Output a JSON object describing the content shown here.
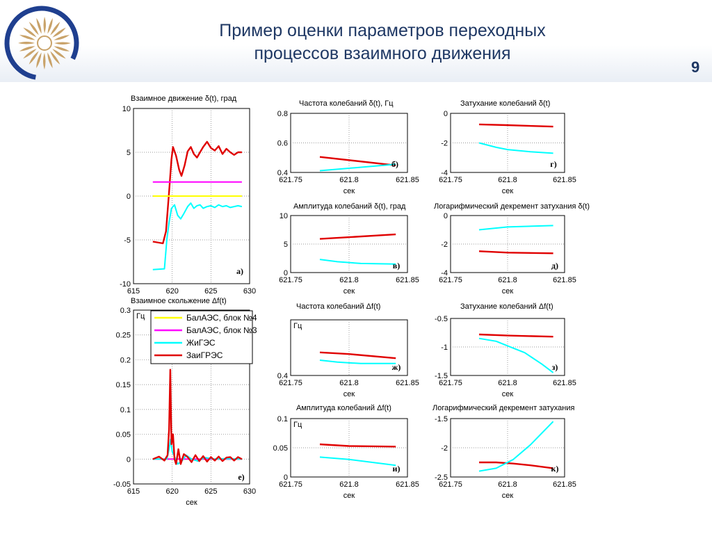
{
  "slide": {
    "title_line1": "Пример оценки параметров переходных",
    "title_line2": "процессов взаимного движения",
    "page_number": "9"
  },
  "colors": {
    "title": "#1f3864",
    "bal4": "#ffff00",
    "bal3": "#ff00ff",
    "zhig": "#00ffff",
    "zai": "#e00000"
  },
  "legend": [
    {
      "label": "БалАЭС, блок №4",
      "color": "#ffff00"
    },
    {
      "label": "БалАЭС, блок №3",
      "color": "#ff00ff"
    },
    {
      "label": "ЖиГЭС",
      "color": "#00ffff"
    },
    {
      "label": "ЗаиГРЭС",
      "color": "#e00000"
    }
  ],
  "chart_data": [
    {
      "id": "a",
      "type": "line",
      "title": "Взаимное движение δ(t), град",
      "panel_label": "а)",
      "xlabel": "",
      "ylabel": "",
      "xlim": [
        615,
        630
      ],
      "ylim": [
        -10,
        10
      ],
      "xticks": [
        "615",
        "620",
        "625",
        "630"
      ],
      "yticks": [
        "-10",
        "-5",
        "0",
        "5",
        "10"
      ],
      "grid": true,
      "series": [
        {
          "color": "#e00000",
          "x": [
            617.5,
            618.8,
            619.2,
            619.6,
            619.9,
            620.1,
            620.5,
            620.9,
            621.2,
            621.6,
            622.0,
            622.4,
            622.8,
            623.2,
            623.6,
            624.0,
            624.5,
            625.0,
            625.5,
            626.0,
            626.5,
            627.0,
            627.5,
            628.0,
            628.5,
            629.0
          ],
          "y": [
            -5.2,
            -5.4,
            -4.0,
            0.5,
            4.2,
            5.6,
            4.6,
            3.0,
            2.3,
            3.5,
            5.1,
            5.6,
            4.8,
            4.4,
            5.0,
            5.6,
            6.2,
            5.5,
            5.2,
            5.7,
            4.8,
            5.4,
            5.0,
            4.7,
            5.0,
            5.0
          ]
        },
        {
          "color": "#ffff00",
          "x": [
            617.5,
            629.0
          ],
          "y": [
            0.0,
            0.0
          ]
        },
        {
          "color": "#ff00ff",
          "x": [
            617.5,
            629.0
          ],
          "y": [
            1.6,
            1.6
          ]
        },
        {
          "color": "#00ffff",
          "x": [
            617.5,
            619.0,
            619.3,
            619.6,
            619.9,
            620.3,
            620.7,
            621.1,
            621.5,
            622.0,
            622.4,
            622.8,
            623.2,
            623.6,
            624.0,
            624.5,
            625.0,
            625.5,
            626.0,
            626.5,
            627.0,
            627.5,
            628.0,
            628.5,
            629.0
          ],
          "y": [
            -8.4,
            -8.3,
            -5.0,
            -3.0,
            -1.4,
            -1.0,
            -2.2,
            -2.6,
            -2.0,
            -1.2,
            -0.8,
            -1.4,
            -1.1,
            -1.0,
            -1.4,
            -1.2,
            -1.1,
            -1.3,
            -1.0,
            -1.2,
            -1.1,
            -1.3,
            -1.2,
            -1.1,
            -1.2
          ]
        }
      ]
    },
    {
      "id": "b",
      "type": "line",
      "title": "Частота колебаний δ(t), Гц",
      "panel_label": "б)",
      "xlabel": "сек",
      "ylabel": "",
      "xlim": [
        621.75,
        621.85
      ],
      "ylim": [
        0.4,
        0.8
      ],
      "xticks": [
        "621.75",
        "621.8",
        "621.85"
      ],
      "yticks": [
        "0.4",
        "0.6",
        "0.8"
      ],
      "grid": true,
      "series": [
        {
          "color": "#e00000",
          "x": [
            621.775,
            621.84
          ],
          "y": [
            0.505,
            0.448
          ]
        },
        {
          "color": "#00ffff",
          "x": [
            621.775,
            621.84
          ],
          "y": [
            0.412,
            0.455
          ]
        }
      ]
    },
    {
      "id": "g",
      "type": "line",
      "title": "Затухание колебаний δ(t)",
      "panel_label": "г)",
      "xlabel": "сек",
      "ylabel": "",
      "xlim": [
        621.75,
        621.85
      ],
      "ylim": [
        -4,
        0
      ],
      "xticks": [
        "621.75",
        "621.8",
        "621.85"
      ],
      "yticks": [
        "-4",
        "-2",
        "0"
      ],
      "grid": true,
      "series": [
        {
          "color": "#e00000",
          "x": [
            621.775,
            621.8,
            621.84
          ],
          "y": [
            -0.75,
            -0.8,
            -0.9
          ]
        },
        {
          "color": "#00ffff",
          "x": [
            621.775,
            621.79,
            621.8,
            621.82,
            621.84
          ],
          "y": [
            -2.0,
            -2.3,
            -2.45,
            -2.6,
            -2.7
          ]
        }
      ]
    },
    {
      "id": "v",
      "type": "line",
      "title": "Амплитуда колебаний δ(t), град",
      "panel_label": "в)",
      "xlabel": "сек",
      "ylabel": "",
      "xlim": [
        621.75,
        621.85
      ],
      "ylim": [
        0,
        10
      ],
      "xticks": [
        "621.75",
        "621.8",
        "621.85"
      ],
      "yticks": [
        "0",
        "5",
        "10"
      ],
      "grid": true,
      "series": [
        {
          "color": "#e00000",
          "x": [
            621.775,
            621.84
          ],
          "y": [
            5.9,
            6.7
          ]
        },
        {
          "color": "#00ffff",
          "x": [
            621.775,
            621.79,
            621.81,
            621.84
          ],
          "y": [
            2.3,
            1.9,
            1.6,
            1.5
          ]
        }
      ]
    },
    {
      "id": "d",
      "type": "line",
      "title": "Логарифмический декремент затухания δ(t)",
      "panel_label": "д)",
      "xlabel": "сек",
      "ylabel": "",
      "xlim": [
        621.75,
        621.85
      ],
      "ylim": [
        -4,
        0
      ],
      "xticks": [
        "621.75",
        "621.8",
        "621.85"
      ],
      "yticks": [
        "-4",
        "-2",
        "0"
      ],
      "grid": true,
      "series": [
        {
          "color": "#e00000",
          "x": [
            621.775,
            621.8,
            621.84
          ],
          "y": [
            -2.5,
            -2.6,
            -2.65
          ]
        },
        {
          "color": "#00ffff",
          "x": [
            621.775,
            621.8,
            621.84
          ],
          "y": [
            -1.0,
            -0.8,
            -0.7
          ]
        }
      ]
    },
    {
      "id": "e",
      "type": "line",
      "title": "Взаимное скольжение Δf(t)",
      "panel_label": "е)",
      "xlabel": "сек",
      "ylabel": "Гц",
      "xlim": [
        615,
        630
      ],
      "ylim": [
        -0.05,
        0.3
      ],
      "xticks": [
        "615",
        "620",
        "625",
        "630"
      ],
      "yticks": [
        "-0.05",
        "0",
        "0.05",
        "0.1",
        "0.15",
        "0.2",
        "0.25",
        "0.3"
      ],
      "grid": true,
      "series": [
        {
          "color": "#ffff00",
          "x": [
            617.5,
            629.0
          ],
          "y": [
            0.0,
            0.0
          ]
        },
        {
          "color": "#ff00ff",
          "x": [
            617.5,
            629.0
          ],
          "y": [
            0.0,
            0.0
          ]
        },
        {
          "color": "#00ffff",
          "x": [
            617.5,
            619.3,
            619.6,
            619.8,
            620.0,
            620.3,
            620.7,
            621.2,
            621.8,
            622.5,
            623.3,
            624.2,
            625.5,
            627.0,
            629.0
          ],
          "y": [
            0.0,
            0.0,
            0.02,
            0.04,
            0.015,
            0.005,
            -0.01,
            -0.005,
            0.008,
            0.0,
            -0.004,
            0.003,
            0.0,
            0.001,
            0.0
          ]
        },
        {
          "color": "#e00000",
          "x": [
            617.5,
            618.3,
            619.0,
            619.4,
            619.6,
            619.75,
            619.9,
            620.1,
            620.3,
            620.5,
            620.8,
            621.1,
            621.5,
            622.0,
            622.5,
            623.0,
            623.5,
            624.0,
            624.5,
            625.0,
            625.5,
            626.0,
            626.5,
            627.0,
            627.5,
            628.0,
            628.5,
            629.0
          ],
          "y": [
            0.0,
            0.005,
            -0.003,
            0.008,
            0.06,
            0.18,
            0.03,
            0.05,
            0.0,
            -0.01,
            0.02,
            -0.01,
            0.01,
            0.004,
            -0.006,
            0.008,
            -0.004,
            0.006,
            -0.005,
            0.004,
            -0.003,
            0.005,
            -0.004,
            0.003,
            0.004,
            -0.003,
            0.004,
            0.0
          ]
        }
      ]
    },
    {
      "id": "zh",
      "type": "line",
      "title": "Частота колебаний Δf(t)",
      "panel_label": "ж)",
      "xlabel": "сек",
      "ylabel": "Гц",
      "xlim": [
        621.75,
        621.85
      ],
      "ylim": [
        0.4,
        0.6
      ],
      "xticks": [
        "621.75",
        "621.8",
        "621.85"
      ],
      "yticks": [
        "0.4"
      ],
      "grid": true,
      "series": [
        {
          "color": "#e00000",
          "x": [
            621.775,
            621.8,
            621.84
          ],
          "y": [
            0.483,
            0.477,
            0.462
          ]
        },
        {
          "color": "#00ffff",
          "x": [
            621.775,
            621.79,
            621.81,
            621.84
          ],
          "y": [
            0.455,
            0.448,
            0.443,
            0.443
          ]
        }
      ]
    },
    {
      "id": "z",
      "type": "line",
      "title": "Затухание колебаний Δf(t)",
      "panel_label": "з)",
      "xlabel": "сек",
      "ylabel": "",
      "xlim": [
        621.75,
        621.85
      ],
      "ylim": [
        -1.5,
        -0.5
      ],
      "xticks": [
        "621.75",
        "621.8",
        "621.85"
      ],
      "yticks": [
        "-1.5",
        "-1",
        "-0.5"
      ],
      "grid": true,
      "series": [
        {
          "color": "#e00000",
          "x": [
            621.775,
            621.8,
            621.84
          ],
          "y": [
            -0.78,
            -0.8,
            -0.82
          ]
        },
        {
          "color": "#00ffff",
          "x": [
            621.775,
            621.79,
            621.8,
            621.815,
            621.83,
            621.84
          ],
          "y": [
            -0.85,
            -0.9,
            -0.98,
            -1.1,
            -1.3,
            -1.45
          ]
        }
      ]
    },
    {
      "id": "i",
      "type": "line",
      "title": "Амплитуда колебаний Δf(t)",
      "panel_label": "и)",
      "xlabel": "сек",
      "ylabel": "Гц",
      "xlim": [
        621.75,
        621.85
      ],
      "ylim": [
        0,
        0.1
      ],
      "xticks": [
        "621.75",
        "621.8",
        "621.85"
      ],
      "yticks": [
        "0",
        "0.05",
        "0.1"
      ],
      "grid": true,
      "series": [
        {
          "color": "#e00000",
          "x": [
            621.775,
            621.8,
            621.84
          ],
          "y": [
            0.056,
            0.053,
            0.052
          ]
        },
        {
          "color": "#00ffff",
          "x": [
            621.775,
            621.8,
            621.84
          ],
          "y": [
            0.034,
            0.03,
            0.02
          ]
        }
      ]
    },
    {
      "id": "k",
      "type": "line",
      "title": "Логарифмический декремент затухания",
      "panel_label": "к)",
      "xlabel": "сек",
      "ylabel": "",
      "xlim": [
        621.75,
        621.85
      ],
      "ylim": [
        -2.5,
        -1.5
      ],
      "xticks": [
        "621.75",
        "621.8",
        "621.85"
      ],
      "yticks": [
        "-2.5",
        "-2",
        "-1.5"
      ],
      "grid": true,
      "series": [
        {
          "color": "#e00000",
          "x": [
            621.775,
            621.79,
            621.805,
            621.82,
            621.84
          ],
          "y": [
            -2.25,
            -2.25,
            -2.27,
            -2.3,
            -2.35
          ]
        },
        {
          "color": "#00ffff",
          "x": [
            621.775,
            621.79,
            621.805,
            621.82,
            621.84
          ],
          "y": [
            -2.4,
            -2.35,
            -2.2,
            -1.95,
            -1.55
          ]
        }
      ]
    }
  ]
}
